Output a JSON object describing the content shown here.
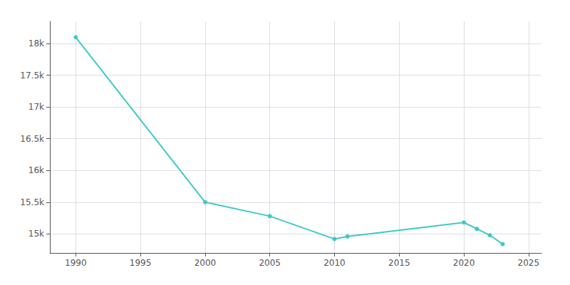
{
  "chart_data": {
    "type": "line",
    "x": [
      1990,
      2000,
      2005,
      2010,
      2011,
      2020,
      2021,
      2022,
      2023
    ],
    "values": [
      18100,
      15500,
      15280,
      14920,
      14960,
      15180,
      15080,
      14980,
      14840
    ],
    "color": "#3ec9c9",
    "marker": "circle",
    "xlim": [
      1988,
      2026
    ],
    "xticks": [
      1990,
      1995,
      2000,
      2005,
      2010,
      2015,
      2020,
      2025
    ],
    "ylim": [
      14700,
      18350
    ],
    "yticks": [
      {
        "value": 15000,
        "label": "15k"
      },
      {
        "value": 15500,
        "label": "15.5k"
      },
      {
        "value": 16000,
        "label": "16k"
      },
      {
        "value": 16500,
        "label": "16.5k"
      },
      {
        "value": 17000,
        "label": "17k"
      },
      {
        "value": 17500,
        "label": "17.5k"
      },
      {
        "value": 18000,
        "label": "18k"
      }
    ],
    "grid": true
  }
}
